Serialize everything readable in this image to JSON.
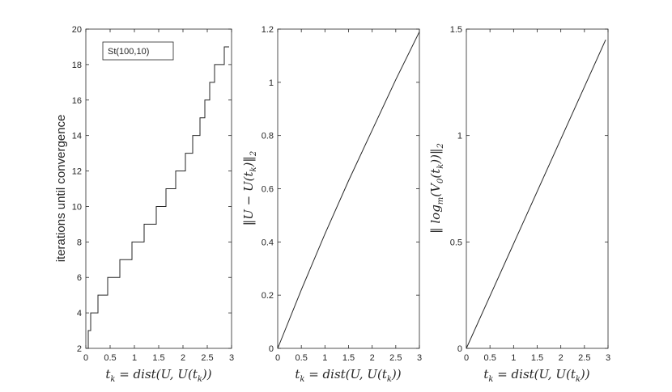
{
  "chart_data": [
    {
      "type": "line",
      "ylabel": "iterations until convergence",
      "xlabel": "t_k = dist(U, U(t_k))",
      "xlim": [
        0,
        3
      ],
      "ylim": [
        2,
        20
      ],
      "xticks": [
        "0",
        "0.5",
        "1",
        "1.5",
        "2",
        "2.5",
        "3"
      ],
      "yticks": [
        "2",
        "4",
        "6",
        "8",
        "10",
        "12",
        "14",
        "16",
        "18",
        "20"
      ],
      "legend": {
        "label": "St(100,10)",
        "placement": "top-left"
      },
      "series": [
        {
          "style": "step",
          "x": [
            0,
            0.05,
            0.1,
            0.25,
            0.45,
            0.7,
            0.95,
            1.2,
            1.45,
            1.65,
            1.85,
            2.05,
            2.2,
            2.35,
            2.45,
            2.55,
            2.65,
            2.75,
            2.85,
            2.92,
            2.95
          ],
          "y": [
            2,
            3,
            4,
            5,
            6,
            7,
            8,
            9,
            10,
            11,
            12,
            13,
            14,
            15,
            16,
            17,
            18,
            18,
            19,
            19,
            19
          ]
        }
      ]
    },
    {
      "type": "line",
      "ylabel": "||U − U(t_k)||_2",
      "xlabel": "t_k = dist(U, U(t_k))",
      "xlim": [
        0,
        3
      ],
      "ylim": [
        0,
        1.2
      ],
      "xticks": [
        "0",
        "0.5",
        "1",
        "1.5",
        "2",
        "2.5",
        "3"
      ],
      "yticks": [
        "0",
        "0.2",
        "0.4",
        "0.6",
        "0.8",
        "1",
        "1.2"
      ],
      "series": [
        {
          "x": [
            0,
            0.5,
            1,
            1.5,
            2,
            2.5,
            3
          ],
          "y": [
            0,
            0.22,
            0.43,
            0.63,
            0.82,
            1.01,
            1.19
          ]
        }
      ]
    },
    {
      "type": "line",
      "ylabel": "|| log_m(V_0(t_k)) ||_2",
      "xlabel": "t_k = dist(U, U(t_k))",
      "xlim": [
        0,
        3
      ],
      "ylim": [
        0,
        1.5
      ],
      "xticks": [
        "0",
        "0.5",
        "1",
        "1.5",
        "2",
        "2.5",
        "3"
      ],
      "yticks": [
        "0",
        "0.5",
        "1",
        "1.5"
      ],
      "series": [
        {
          "x": [
            0,
            2.95
          ],
          "y": [
            0,
            1.45
          ]
        }
      ]
    }
  ]
}
